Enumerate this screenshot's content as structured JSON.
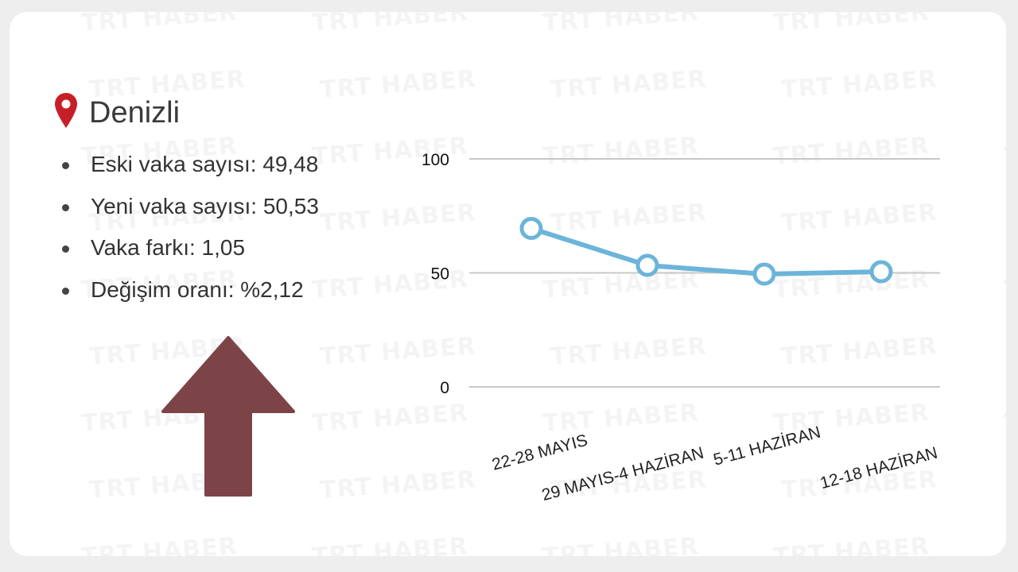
{
  "watermark": "TRT HABER",
  "header": {
    "city": "Denizli",
    "icon": "map-pin-icon",
    "icon_color": "#c62026"
  },
  "stats": [
    "Eski vaka sayısı: 49,48",
    "Yeni vaka sayısı: 50,53",
    "Vaka farkı: 1,05",
    "Değişim oranı: %2,12"
  ],
  "trend": {
    "direction": "up",
    "icon": "arrow-up-icon",
    "color": "#7d4448"
  },
  "chart_data": {
    "type": "line",
    "categories": [
      "22-28 MAYIS",
      "29 MAYIS-4 HAZİRAN",
      "5-11 HAZİRAN",
      "12-18 HAZİRAN"
    ],
    "values": [
      69.5,
      53.3,
      49.48,
      50.53
    ],
    "yticks": [
      "0",
      "50",
      "100"
    ],
    "ylim": [
      0,
      100
    ],
    "grid": true,
    "line_color": "#6cb4d9",
    "marker": "hollow-circle"
  }
}
